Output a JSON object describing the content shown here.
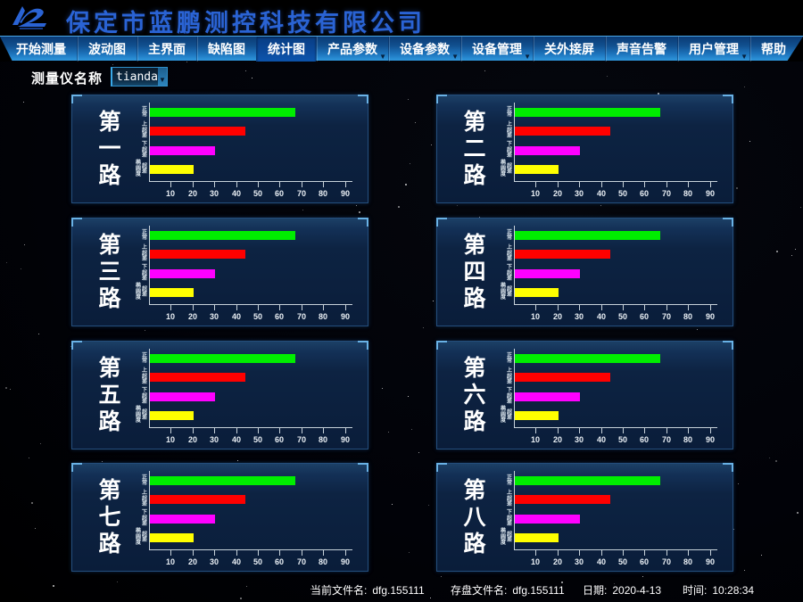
{
  "title_bar": {
    "company": "保定市蓝鹏测控科技有限公司"
  },
  "menu": {
    "items": [
      {
        "label": "开始测量",
        "has_arrow": false,
        "selected": false
      },
      {
        "label": "波动图",
        "has_arrow": false,
        "selected": false
      },
      {
        "label": "主界面",
        "has_arrow": false,
        "selected": false
      },
      {
        "label": "缺陷图",
        "has_arrow": false,
        "selected": false
      },
      {
        "label": "统计图",
        "has_arrow": false,
        "selected": true
      },
      {
        "label": "产品参数",
        "has_arrow": true,
        "selected": false
      },
      {
        "label": "设备参数",
        "has_arrow": true,
        "selected": false
      },
      {
        "label": "设备管理",
        "has_arrow": true,
        "selected": false
      },
      {
        "label": "关外接屏",
        "has_arrow": false,
        "selected": false
      },
      {
        "label": "声音告警",
        "has_arrow": false,
        "selected": false
      },
      {
        "label": "用户管理",
        "has_arrow": true,
        "selected": false
      },
      {
        "label": "帮助",
        "has_arrow": false,
        "selected": false
      }
    ]
  },
  "toolbar": {
    "gauge_name_label": "测量仪名称",
    "gauge_name_value": "tianda"
  },
  "chart_data": {
    "type": "bar",
    "orientation": "horizontal",
    "shared_across_panels": true,
    "panel_titles": [
      "第一路",
      "第二路",
      "第三路",
      "第四路",
      "第五路",
      "第六路",
      "第七路",
      "第八路"
    ],
    "categories": [
      "正常",
      "上超差",
      "下超差",
      "椭圆度超差"
    ],
    "category_label_columns": [
      [
        "正常"
      ],
      [
        "上超差"
      ],
      [
        "下超差"
      ],
      [
        "椭圆度",
        "超差"
      ]
    ],
    "values": [
      67,
      44,
      30,
      20
    ],
    "bar_colors": [
      "#00ee00",
      "#ff0000",
      "#ff00ff",
      "#ffff00"
    ],
    "x_ticks": [
      10,
      20,
      30,
      40,
      50,
      60,
      70,
      80,
      90
    ],
    "xlim": [
      0,
      95
    ],
    "grid": false,
    "legend": false
  },
  "status_bar": {
    "current_file_label": "当前文件名:",
    "current_file_value": "dfg.155111",
    "saved_file_label": "存盘文件名:",
    "saved_file_value": "dfg.155111",
    "date_label": "日期:",
    "date_value": "2020-4-13",
    "time_label": "时间:",
    "time_value": "10:28:34"
  },
  "colors": {
    "title_blue": "#2a63d4",
    "menu_selected_blue": "#0b4a9c",
    "panel_navy": "#0d2342",
    "bar_green": "#00ee00",
    "bar_red": "#ff0000",
    "bar_magenta": "#ff00ff",
    "bar_yellow": "#ffff00"
  }
}
